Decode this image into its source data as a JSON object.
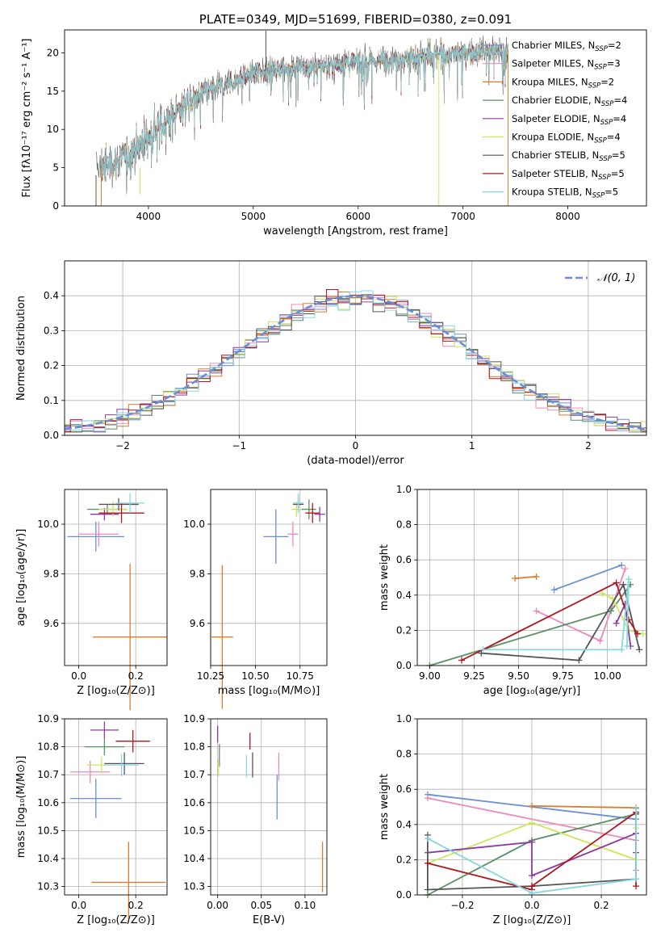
{
  "colors": {
    "Chabrier MILES": "#6a8fd8",
    "Salpeter MILES": "#e98bbd",
    "Kroupa MILES": "#e07b2a",
    "Chabrier ELODIE": "#5b8f64",
    "Salpeter ELODIE": "#8e3aa6",
    "Kroupa ELODIE": "#cfe65a",
    "Chabrier STELIB": "#555555",
    "Salpeter STELIB": "#b0171f",
    "Kroupa STELIB": "#86d8e0",
    "gauss": "#6a8fd8",
    "grid": "#b0b0b0"
  },
  "chart_data": [
    {
      "id": "spectrum",
      "type": "line",
      "title": "PLATE=0349, MJD=51699, FIBERID=0380, z=0.091",
      "xlabel": "wavelength [Angstrom, rest frame]",
      "ylabel": "Flux [fλ10⁻¹⁷ erg cm⁻² s⁻¹ A⁻¹]",
      "xlim": [
        3200,
        8750
      ],
      "ylim": [
        0,
        23
      ],
      "xticks": [
        4000,
        5000,
        6000,
        7000,
        8000
      ],
      "yticks": [
        0,
        5,
        10,
        15,
        20
      ],
      "grid": false,
      "legend_position": "upper right",
      "continuum_x": [
        3550,
        3800,
        4000,
        4200,
        4400,
        4600,
        4800,
        5000,
        5300,
        5600,
        6000,
        6400,
        6800,
        7200,
        7500
      ],
      "continuum_y": [
        5,
        6.5,
        9,
        11.5,
        13.8,
        15.3,
        16.2,
        17.4,
        18,
        18.3,
        18.8,
        19.3,
        19.8,
        20.2,
        20.5
      ],
      "data_range": [
        3500,
        7430
      ],
      "model_range": [
        3550,
        7430
      ],
      "spikes": [
        {
          "x": 5120,
          "y": 22.9
        },
        {
          "x": 6770,
          "y": 0
        },
        {
          "x": 7430,
          "y": 0
        }
      ],
      "series": [
        {
          "name": "Chabrier MILES, N_SSP=2",
          "label_main": "Chabrier MILES, N",
          "label_sub": "SSP",
          "label_end": "=2",
          "color_key": "Chabrier MILES"
        },
        {
          "name": "Salpeter MILES, N_SSP=3",
          "label_main": "Salpeter MILES, N",
          "label_sub": "SSP",
          "label_end": "=3",
          "color_key": "Salpeter MILES"
        },
        {
          "name": "Kroupa MILES, N_SSP=2",
          "label_main": "Kroupa MILES, N",
          "label_sub": "SSP",
          "label_end": "=2",
          "color_key": "Kroupa MILES"
        },
        {
          "name": "Chabrier ELODIE, N_SSP=4",
          "label_main": "Chabrier ELODIE, N",
          "label_sub": "SSP",
          "label_end": "=4",
          "color_key": "Chabrier ELODIE"
        },
        {
          "name": "Salpeter ELODIE, N_SSP=4",
          "label_main": "Salpeter ELODIE, N",
          "label_sub": "SSP",
          "label_end": "=4",
          "color_key": "Salpeter ELODIE"
        },
        {
          "name": "Kroupa ELODIE, N_SSP=4",
          "label_main": "Kroupa ELODIE, N",
          "label_sub": "SSP",
          "label_end": "=4",
          "color_key": "Kroupa ELODIE"
        },
        {
          "name": "Chabrier STELIB, N_SSP=5",
          "label_main": "Chabrier STELIB, N",
          "label_sub": "SSP",
          "label_end": "=5",
          "color_key": "Chabrier STELIB"
        },
        {
          "name": "Salpeter STELIB, N_SSP=5",
          "label_main": "Salpeter STELIB, N",
          "label_sub": "SSP",
          "label_end": "=5",
          "color_key": "Salpeter STELIB"
        },
        {
          "name": "Kroupa STELIB, N_SSP=5",
          "label_main": "Kroupa STELIB, N",
          "label_sub": "SSP",
          "label_end": "=5",
          "color_key": "Kroupa STELIB"
        }
      ]
    },
    {
      "id": "residuals",
      "type": "step",
      "xlabel": "(data-model)/error",
      "ylabel": "Normed distribution",
      "xlim": [
        -2.5,
        2.5
      ],
      "ylim": [
        0,
        0.5
      ],
      "xticks": [
        -2,
        -1,
        0,
        1,
        2
      ],
      "yticks": [
        0.0,
        0.1,
        0.2,
        0.3,
        0.4
      ],
      "grid": true,
      "legend_position": "upper right",
      "gauss_label": "𝒩(0, 1)",
      "bin_width": 0.1,
      "bin_start": -2.5
    },
    {
      "id": "age-vs-Z",
      "type": "errorbar",
      "xlabel": "Z [log₁₀(Z/Z⊙)]",
      "ylabel": "age  [log₁₀(age/yr)]",
      "xlim": [
        -0.05,
        0.31
      ],
      "ylim": [
        9.43,
        10.14
      ],
      "xticks": [
        0.0,
        0.2
      ],
      "yticks": [
        9.6,
        9.8,
        10.0
      ],
      "grid": true,
      "points": [
        {
          "key": "Chabrier MILES",
          "x": 0.06,
          "y": 9.95,
          "xerr": 0.1,
          "yerr": 0.06
        },
        {
          "key": "Salpeter MILES",
          "x": 0.07,
          "y": 9.96,
          "xerr": 0.07,
          "yerr": 0.05
        },
        {
          "key": "Kroupa MILES",
          "x": 0.18,
          "y": 9.545,
          "xerr": 0.13,
          "yerr": 0.295
        },
        {
          "key": "Chabrier ELODIE",
          "x": 0.1,
          "y": 10.06,
          "xerr": 0.07,
          "yerr": 0.02
        },
        {
          "key": "Salpeter ELODIE",
          "x": 0.09,
          "y": 10.04,
          "xerr": 0.05,
          "yerr": 0.025
        },
        {
          "key": "Kroupa ELODIE",
          "x": 0.12,
          "y": 10.06,
          "xerr": 0.05,
          "yerr": 0.03
        },
        {
          "key": "Chabrier STELIB",
          "x": 0.14,
          "y": 10.08,
          "xerr": 0.07,
          "yerr": 0.025
        },
        {
          "key": "Salpeter STELIB",
          "x": 0.15,
          "y": 10.045,
          "xerr": 0.08,
          "yerr": 0.04
        },
        {
          "key": "Kroupa STELIB",
          "x": 0.18,
          "y": 10.085,
          "xerr": 0.05,
          "yerr": 0.04
        }
      ]
    },
    {
      "id": "age-vs-mass",
      "type": "errorbar",
      "xlabel": "mass [log₁₀(M/M⊙)]",
      "ylabel": "",
      "xlim": [
        10.25,
        10.9
      ],
      "ylim": [
        9.43,
        10.14
      ],
      "xticks": [
        10.25,
        10.5,
        10.75
      ],
      "xtick_labels": [
        "10.25",
        "10.50",
        "10.75"
      ],
      "yticks": [
        9.6,
        9.8,
        10.0
      ],
      "grid": true,
      "points": [
        {
          "key": "Chabrier MILES",
          "x": 10.615,
          "y": 9.95,
          "xerr": 0.07,
          "yerr": 0.11
        },
        {
          "key": "Salpeter MILES",
          "x": 10.71,
          "y": 9.96,
          "xerr": 0.03,
          "yerr": 0.05
        },
        {
          "key": "Kroupa MILES",
          "x": 10.315,
          "y": 9.545,
          "xerr": 0.06,
          "yerr": 0.29
        },
        {
          "key": "Chabrier ELODIE",
          "x": 10.8,
          "y": 10.06,
          "xerr": 0.04,
          "yerr": 0.04
        },
        {
          "key": "Salpeter ELODIE",
          "x": 10.86,
          "y": 10.04,
          "xerr": 0.03,
          "yerr": 0.03
        },
        {
          "key": "Kroupa ELODIE",
          "x": 10.73,
          "y": 10.06,
          "xerr": 0.03,
          "yerr": 0.03
        },
        {
          "key": "Chabrier STELIB",
          "x": 10.74,
          "y": 10.08,
          "xerr": 0.03,
          "yerr": 0.03
        },
        {
          "key": "Salpeter STELIB",
          "x": 10.82,
          "y": 10.045,
          "xerr": 0.04,
          "yerr": 0.04
        },
        {
          "key": "Kroupa STELIB",
          "x": 10.74,
          "y": 10.085,
          "xerr": 0.03,
          "yerr": 0.04
        }
      ]
    },
    {
      "id": "mass-weight-vs-age",
      "type": "line",
      "xlabel": "age  [log₁₀(age/yr)]",
      "ylabel": "mass weight",
      "xlim": [
        8.93,
        10.22
      ],
      "ylim": [
        0,
        1
      ],
      "xticks": [
        9.0,
        9.25,
        9.5,
        9.75,
        10.0
      ],
      "xtick_labels": [
        "9.00",
        "9.25",
        "9.50",
        "9.75",
        "10.00"
      ],
      "yticks": [
        0.0,
        0.2,
        0.4,
        0.6,
        0.8,
        1.0
      ],
      "grid": true,
      "series": [
        {
          "key": "Chabrier MILES",
          "x": [
            9.7,
            10.08
          ],
          "y": [
            0.43,
            0.57
          ]
        },
        {
          "key": "Kroupa MILES",
          "x": [
            9.48,
            9.6
          ],
          "y": [
            0.495,
            0.505
          ]
        },
        {
          "key": "Salpeter MILES",
          "x": [
            9.6,
            9.96,
            10.1
          ],
          "y": [
            0.31,
            0.14,
            0.55
          ]
        },
        {
          "key": "Chabrier ELODIE",
          "x": [
            9.0,
            10.02,
            10.13
          ],
          "y": [
            0.0,
            0.31,
            0.46
          ]
        },
        {
          "key": "Kroupa ELODIE",
          "x": [
            9.97,
            10.03,
            10.12,
            10.2
          ],
          "y": [
            0.41,
            0.38,
            0.2,
            0.18
          ]
        },
        {
          "key": "Salpeter ELODIE",
          "x": [
            10.05,
            10.1,
            10.13
          ],
          "y": [
            0.24,
            0.35,
            0.11
          ]
        },
        {
          "key": "Chabrier STELIB",
          "x": [
            9.29,
            9.84,
            10.09,
            10.18
          ],
          "y": [
            0.07,
            0.03,
            0.46,
            0.09
          ]
        },
        {
          "key": "Salpeter STELIB",
          "x": [
            9.18,
            10.05,
            10.12,
            10.17
          ],
          "y": [
            0.03,
            0.47,
            0.26,
            0.18
          ]
        },
        {
          "key": "Kroupa STELIB",
          "x": [
            9.3,
            10.08,
            10.12,
            10.11
          ],
          "y": [
            0.09,
            0.09,
            0.49,
            0.11
          ]
        }
      ]
    },
    {
      "id": "mass-vs-Z",
      "type": "errorbar",
      "xlabel": "Z [log₁₀(Z/Z⊙)]",
      "ylabel": "mass [log₁₀(M/M⊙)]",
      "xlim": [
        -0.05,
        0.31
      ],
      "ylim": [
        10.27,
        10.9
      ],
      "xticks": [
        0.0,
        0.2
      ],
      "yticks": [
        10.3,
        10.4,
        10.5,
        10.6,
        10.7,
        10.8,
        10.9
      ],
      "grid": true,
      "points": [
        {
          "key": "Chabrier MILES",
          "x": 0.06,
          "y": 10.615,
          "xerr": 0.09,
          "yerr": 0.07
        },
        {
          "key": "Salpeter MILES",
          "x": 0.04,
          "y": 10.71,
          "xerr": 0.07,
          "yerr": 0.04
        },
        {
          "key": "Kroupa MILES",
          "x": 0.175,
          "y": 10.315,
          "xerr": 0.13,
          "yerr": 0.145
        },
        {
          "key": "Chabrier ELODIE",
          "x": 0.09,
          "y": 10.8,
          "xerr": 0.07,
          "yerr": 0.03
        },
        {
          "key": "Salpeter ELODIE",
          "x": 0.09,
          "y": 10.86,
          "xerr": 0.05,
          "yerr": 0.03
        },
        {
          "key": "Kroupa ELODIE",
          "x": 0.08,
          "y": 10.735,
          "xerr": 0.05,
          "yerr": 0.03
        },
        {
          "key": "Chabrier STELIB",
          "x": 0.16,
          "y": 10.74,
          "xerr": 0.07,
          "yerr": 0.04
        },
        {
          "key": "Salpeter STELIB",
          "x": 0.19,
          "y": 10.82,
          "xerr": 0.06,
          "yerr": 0.04
        },
        {
          "key": "Kroupa STELIB",
          "x": 0.15,
          "y": 10.735,
          "xerr": 0.06,
          "yerr": 0.04
        }
      ]
    },
    {
      "id": "mass-vs-EBV",
      "type": "errorbar",
      "xlabel": "E(B-V)",
      "ylabel": "",
      "xlim": [
        -0.008,
        0.125
      ],
      "ylim": [
        10.27,
        10.9
      ],
      "xticks": [
        0.0,
        0.05,
        0.1
      ],
      "xtick_labels": [
        "0.00",
        "0.05",
        "0.10"
      ],
      "yticks": [
        10.3,
        10.4,
        10.5,
        10.6,
        10.7,
        10.8,
        10.9
      ],
      "grid": true,
      "points": [
        {
          "key": "Chabrier MILES",
          "x": 0.068,
          "y": 10.62,
          "xerr": 0,
          "yerr": 0.08
        },
        {
          "key": "Salpeter MILES",
          "x": 0.07,
          "y": 10.73,
          "xerr": 0,
          "yerr": 0.05
        },
        {
          "key": "Kroupa MILES",
          "x": 0.12,
          "y": 10.37,
          "xerr": 0,
          "yerr": 0.09
        },
        {
          "key": "Chabrier ELODIE",
          "x": 0.002,
          "y": 10.77,
          "xerr": 0,
          "yerr": 0.04
        },
        {
          "key": "Salpeter ELODIE",
          "x": 0.0,
          "y": 10.845,
          "xerr": 0,
          "yerr": 0.03
        },
        {
          "key": "Kroupa ELODIE",
          "x": 0.001,
          "y": 10.725,
          "xerr": 0,
          "yerr": 0.03
        },
        {
          "key": "Chabrier STELIB",
          "x": 0.04,
          "y": 10.735,
          "xerr": 0,
          "yerr": 0.045
        },
        {
          "key": "Salpeter STELIB",
          "x": 0.037,
          "y": 10.82,
          "xerr": 0,
          "yerr": 0.03
        },
        {
          "key": "Kroupa STELIB",
          "x": 0.033,
          "y": 10.73,
          "xerr": 0,
          "yerr": 0.04
        }
      ]
    },
    {
      "id": "mass-weight-vs-Z",
      "type": "line",
      "xlabel": "Z [log₁₀(Z/Z⊙)]",
      "ylabel": "mass weight",
      "xlim": [
        -0.33,
        0.33
      ],
      "ylim": [
        0,
        1
      ],
      "xticks": [
        -0.2,
        0.0,
        0.2
      ],
      "xtick_labels": [
        "−0.2",
        "0.0",
        "0.2"
      ],
      "yticks": [
        0.0,
        0.2,
        0.4,
        0.6,
        0.8,
        1.0
      ],
      "grid": true,
      "series": [
        {
          "key": "Chabrier MILES",
          "x": [
            -0.3,
            0.3
          ],
          "y": [
            0.57,
            0.43
          ]
        },
        {
          "key": "Kroupa MILES",
          "x": [
            0.0,
            0.3
          ],
          "y": [
            0.505,
            0.495
          ]
        },
        {
          "key": "Salpeter MILES",
          "x": [
            -0.3,
            0.3,
            0.3
          ],
          "y": [
            0.55,
            0.31,
            0.14
          ]
        },
        {
          "key": "Chabrier ELODIE",
          "x": [
            -0.3,
            0.0,
            0.3
          ],
          "y": [
            0.0,
            0.31,
            0.46
          ]
        },
        {
          "key": "Kroupa ELODIE",
          "x": [
            -0.3,
            0.0,
            0.3,
            0.3
          ],
          "y": [
            0.18,
            0.41,
            0.2,
            0.38
          ]
        },
        {
          "key": "Salpeter ELODIE",
          "x": [
            -0.3,
            0.0,
            0.0,
            0.3,
            0.3
          ],
          "y": [
            0.24,
            0.3,
            0.11,
            0.35,
            0.24
          ]
        },
        {
          "key": "Chabrier STELIB",
          "x": [
            -0.3,
            -0.3,
            0.0,
            0.3,
            0.3
          ],
          "y": [
            0.34,
            0.03,
            0.05,
            0.09,
            0.46
          ]
        },
        {
          "key": "Salpeter STELIB",
          "x": [
            -0.3,
            0.0,
            0.0,
            0.3,
            0.3
          ],
          "y": [
            0.18,
            0.03,
            0.05,
            0.47,
            0.05
          ]
        },
        {
          "key": "Kroupa STELIB",
          "x": [
            -0.3,
            0.0,
            0.3,
            0.3
          ],
          "y": [
            0.32,
            0.01,
            0.09,
            0.49
          ]
        }
      ]
    }
  ]
}
